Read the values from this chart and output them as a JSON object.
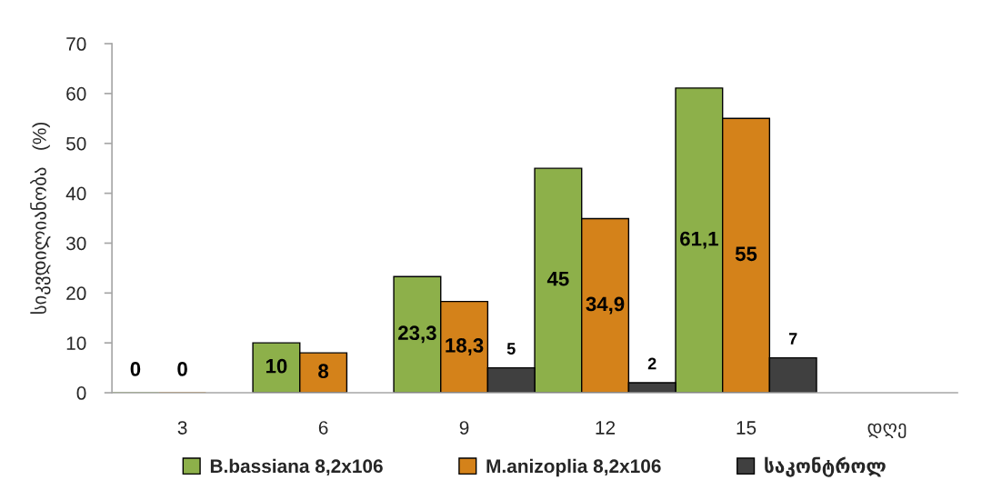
{
  "chart_data": {
    "type": "bar",
    "ylabel": "სიკვდილიანობა   (%)",
    "categories": [
      "3",
      "6",
      "9",
      "12",
      "15",
      "დღე"
    ],
    "series": [
      {
        "name": "B.bassiana 8,2x106",
        "color": "#8db04a",
        "values": [
          0,
          10,
          23.3,
          45,
          61.1,
          null
        ],
        "value_labels": [
          "0",
          "10",
          "23,3",
          "45",
          "61,1",
          null
        ]
      },
      {
        "name": "M.anizoplia 8,2x106",
        "color": "#d4821a",
        "values": [
          0,
          8,
          18.3,
          34.9,
          55,
          null
        ],
        "value_labels": [
          "0",
          "8",
          "18,3",
          "34,9",
          "55",
          null
        ]
      },
      {
        "name": "საკონტროლ",
        "color": "#404040",
        "values": [
          null,
          null,
          5,
          2,
          7,
          null
        ],
        "value_labels": [
          null,
          null,
          "5",
          "2",
          "7",
          null
        ]
      }
    ],
    "ylim": [
      0,
      70
    ],
    "yticks": [
      0,
      10,
      20,
      30,
      40,
      50,
      60,
      70
    ],
    "grid": false,
    "legend": "bottom"
  }
}
